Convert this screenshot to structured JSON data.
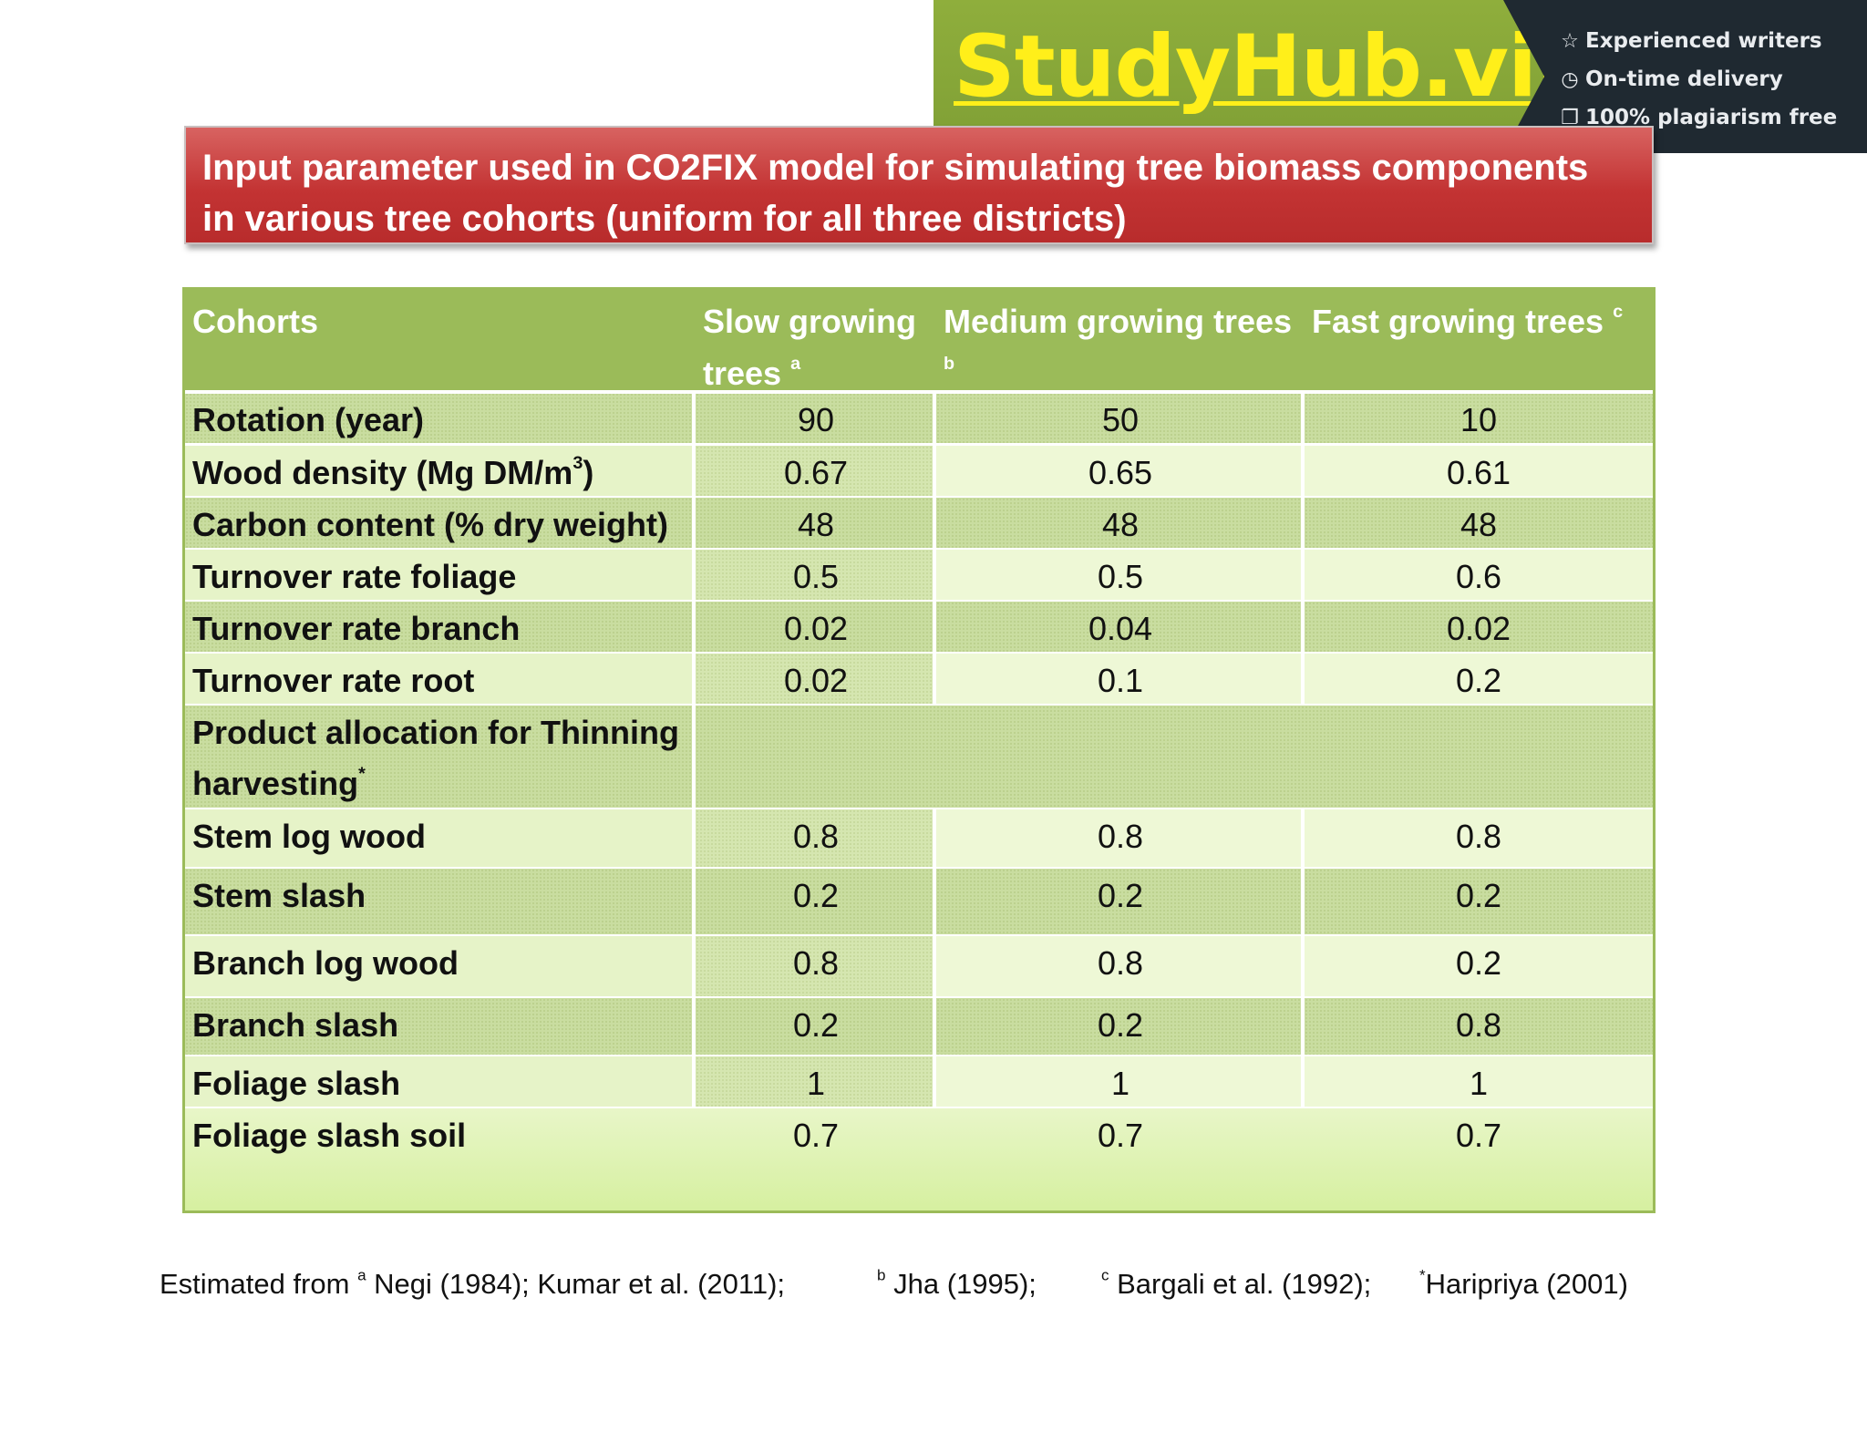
{
  "watermark": {
    "logo": "StudyHub.vip",
    "features": [
      {
        "icon": "star-icon",
        "glyph": "☆",
        "label": "Experienced writers"
      },
      {
        "icon": "clock-icon",
        "glyph": "◷",
        "label": "On-time delivery"
      },
      {
        "icon": "copy-icon",
        "glyph": "❐",
        "label": "100% plagiarism free"
      }
    ]
  },
  "title": {
    "line1": "Input parameter used in CO2FIX model for simulating tree biomass components",
    "line2": "in various tree cohorts (uniform for all three districts)"
  },
  "table": {
    "headers": [
      {
        "text": "Cohorts",
        "sup": ""
      },
      {
        "text": "Slow growing trees",
        "sup": "a"
      },
      {
        "text": "Medium growing trees",
        "sup": "b"
      },
      {
        "text": "Fast growing trees",
        "sup": "c"
      }
    ],
    "rows": [
      {
        "label": "Rotation (year)",
        "values": [
          "90",
          "50",
          "10"
        ]
      },
      {
        "label": "Wood density (Mg DM/m",
        "label_sup": "3",
        "label_tail": ")",
        "values": [
          "0.67",
          "0.65",
          "0.61"
        ]
      },
      {
        "label": "Carbon content (% dry weight)",
        "values": [
          "48",
          "48",
          "48"
        ]
      },
      {
        "label": "Turnover rate foliage",
        "values": [
          "0.5",
          "0.5",
          "0.6"
        ]
      },
      {
        "label": "Turnover rate branch",
        "values": [
          "0.02",
          "0.04",
          "0.02"
        ]
      },
      {
        "label": "Turnover rate root",
        "values": [
          "0.02",
          "0.1",
          "0.2"
        ]
      },
      {
        "label": "Product allocation for Thinning harvesting",
        "label_sup": "*",
        "values": []
      },
      {
        "label": "Stem log wood",
        "values": [
          "0.8",
          "0.8",
          "0.8"
        ]
      },
      {
        "label": "Stem slash",
        "values": [
          "0.2",
          "0.2",
          "0.2"
        ]
      },
      {
        "label": "Branch log wood",
        "values": [
          "0.8",
          "0.8",
          "0.2"
        ]
      },
      {
        "label": "Branch slash",
        "values": [
          "0.2",
          "0.2",
          "0.8"
        ]
      },
      {
        "label": "Foliage slash",
        "values": [
          "1",
          "1",
          "1"
        ]
      },
      {
        "label": "Foliage slash soil",
        "values": [
          "0.7",
          "0.7",
          "0.7"
        ]
      }
    ]
  },
  "footnote": {
    "prefix": "Estimated from ",
    "items": [
      {
        "sup": "a",
        "text": " Negi (1984); Kumar et al. (2011);"
      },
      {
        "sup": "b",
        "text": " Jha (1995);"
      },
      {
        "sup": "c",
        "text": " Bargali et al. (1992);"
      },
      {
        "sup": "*",
        "text": "Haripriya (2001)"
      }
    ]
  }
}
